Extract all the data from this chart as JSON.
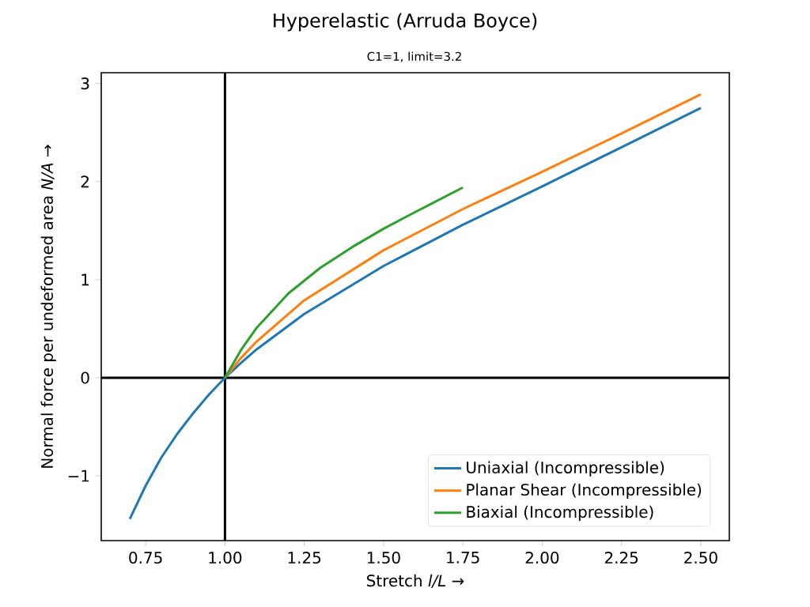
{
  "chart_data": {
    "type": "line",
    "title": "Hyperelastic (Arruda Boyce)",
    "subtitle": "C1=1, limit=3.2",
    "xlabel": "Stretch *l/L*  →",
    "ylabel": "Normal force per undeformed area *N/A*  →",
    "series": [
      {
        "name": "Uniaxial (Incompressible)",
        "color": "#1f77b4",
        "x": [
          0.7,
          0.75,
          0.8,
          0.85,
          0.9,
          0.95,
          1.0,
          1.05,
          1.1,
          1.25,
          1.5,
          1.75,
          2.0,
          2.25,
          2.5
        ],
        "values": [
          -1.44,
          -1.1,
          -0.81,
          -0.57,
          -0.36,
          -0.17,
          0,
          0.15,
          0.29,
          0.65,
          1.14,
          1.56,
          1.95,
          2.35,
          2.75
        ]
      },
      {
        "name": "Planar Shear (Incompressible)",
        "color": "#ff7f0e",
        "x": [
          1.0,
          1.05,
          1.1,
          1.25,
          1.5,
          1.75,
          2.0,
          2.25,
          2.5
        ],
        "values": [
          0,
          0.2,
          0.37,
          0.79,
          1.3,
          1.72,
          2.1,
          2.49,
          2.89
        ]
      },
      {
        "name": "Biaxial (Incompressible)",
        "color": "#2ca02c",
        "x": [
          1.0,
          1.05,
          1.1,
          1.2,
          1.3,
          1.4,
          1.5,
          1.6,
          1.75
        ],
        "values": [
          0,
          0.28,
          0.51,
          0.86,
          1.12,
          1.33,
          1.52,
          1.69,
          1.94
        ]
      }
    ],
    "xlim": [
      0.61,
      2.59
    ],
    "ylim": [
      -1.66,
      3.11
    ],
    "xticks": [
      {
        "value": 0.75,
        "label": "0.75"
      },
      {
        "value": 1.0,
        "label": "1.00"
      },
      {
        "value": 1.25,
        "label": "1.25"
      },
      {
        "value": 1.5,
        "label": "1.50"
      },
      {
        "value": 1.75,
        "label": "1.75"
      },
      {
        "value": 2.0,
        "label": "2.00"
      },
      {
        "value": 2.25,
        "label": "2.25"
      },
      {
        "value": 2.5,
        "label": "2.50"
      }
    ],
    "yticks": [
      {
        "value": -1,
        "label": "−1"
      },
      0,
      1,
      2,
      3
    ],
    "ref_lines": [
      {
        "axis": "x",
        "value": 1.0,
        "color": "#000000"
      },
      {
        "axis": "y",
        "value": 0,
        "color": "#000000"
      }
    ],
    "legend": "bottom right",
    "grid": false,
    "marker": "none"
  }
}
